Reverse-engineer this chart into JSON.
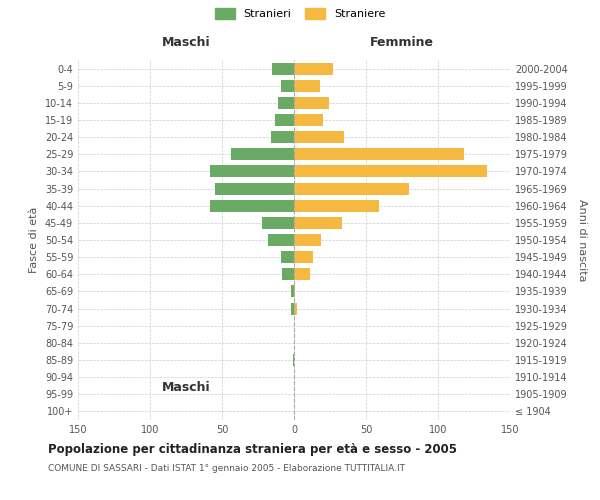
{
  "age_groups": [
    "100+",
    "95-99",
    "90-94",
    "85-89",
    "80-84",
    "75-79",
    "70-74",
    "65-69",
    "60-64",
    "55-59",
    "50-54",
    "45-49",
    "40-44",
    "35-39",
    "30-34",
    "25-29",
    "20-24",
    "15-19",
    "10-14",
    "5-9",
    "0-4"
  ],
  "birth_years": [
    "≤ 1904",
    "1905-1909",
    "1910-1914",
    "1915-1919",
    "1920-1924",
    "1925-1929",
    "1930-1934",
    "1935-1939",
    "1940-1944",
    "1945-1949",
    "1950-1954",
    "1955-1959",
    "1960-1964",
    "1965-1969",
    "1970-1974",
    "1975-1979",
    "1980-1984",
    "1985-1989",
    "1990-1994",
    "1995-1999",
    "2000-2004"
  ],
  "males": [
    0,
    0,
    0,
    1,
    0,
    0,
    2,
    2,
    8,
    9,
    18,
    22,
    58,
    55,
    58,
    44,
    16,
    13,
    11,
    9,
    15
  ],
  "females": [
    0,
    0,
    0,
    0,
    0,
    0,
    2,
    1,
    11,
    13,
    19,
    33,
    59,
    80,
    134,
    118,
    35,
    20,
    24,
    18,
    27
  ],
  "male_color": "#6aaa64",
  "female_color": "#f5b942",
  "grid_color": "#cccccc",
  "axis_label_color": "#555555",
  "title": "Popolazione per cittadinanza straniera per età e sesso - 2005",
  "subtitle": "COMUNE DI SASSARI - Dati ISTAT 1° gennaio 2005 - Elaborazione TUTTITALIA.IT",
  "left_axis_label": "Fasce di età",
  "right_axis_label": "Anni di nascita",
  "maschi_label": "Maschi",
  "femmine_label": "Femmine",
  "legend_stranieri": "Stranieri",
  "legend_straniere": "Straniere",
  "xlim": 150,
  "background_color": "#ffffff"
}
